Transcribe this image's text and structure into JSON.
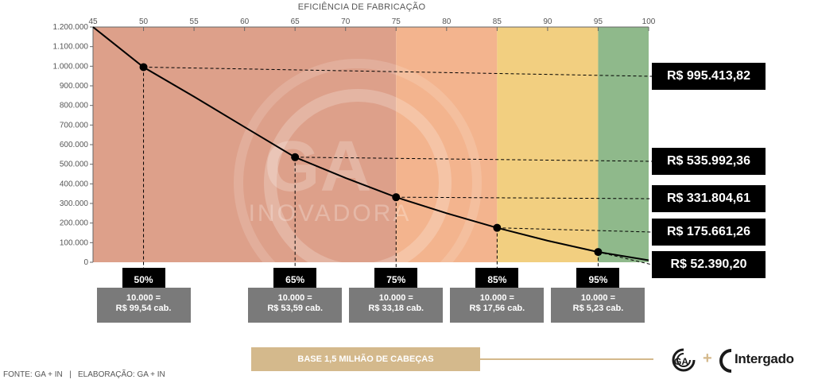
{
  "chart_data": {
    "type": "line",
    "title": "EFICIÊNCIA DE FABRICAÇÃO",
    "x_ticks": [
      "45",
      "50",
      "55",
      "60",
      "65",
      "70",
      "75",
      "80",
      "85",
      "90",
      "95",
      "100"
    ],
    "y_ticks": [
      "0",
      "100.000",
      "200.000",
      "300.000",
      "400.000",
      "500.000",
      "600.000",
      "700.000",
      "800.000",
      "900.000",
      "1.000.000",
      "1.100.000",
      "1.200.000"
    ],
    "xlim": [
      45,
      100
    ],
    "ylim": [
      0,
      1200000
    ],
    "zones": [
      {
        "from": 45,
        "to": 75,
        "color": "#dda08a"
      },
      {
        "from": 75,
        "to": 85,
        "color": "#f3b48e"
      },
      {
        "from": 85,
        "to": 95,
        "color": "#f2cf80"
      },
      {
        "from": 95,
        "to": 100,
        "color": "#8fb98b"
      }
    ],
    "curve": {
      "x": [
        45,
        50,
        55,
        60,
        65,
        70,
        75,
        80,
        85,
        90,
        95,
        100
      ],
      "y": [
        1240000,
        995413.82,
        845000,
        690000,
        535992.36,
        430000,
        331804.61,
        250000,
        175661.26,
        110000,
        52390.2,
        10000
      ]
    },
    "points": [
      {
        "x": 50,
        "y": 995413.82,
        "label": "R$ 995.413,82"
      },
      {
        "x": 65,
        "y": 535992.36,
        "label": "R$ 535.992,36"
      },
      {
        "x": 75,
        "y": 331804.61,
        "label": "R$ 331.804,61"
      },
      {
        "x": 85,
        "y": 175661.26,
        "label": "R$ 175.661,26"
      },
      {
        "x": 95,
        "y": 52390.2,
        "label": "R$ 52.390,20"
      }
    ],
    "grid": false,
    "watermark": {
      "line1": "GA",
      "line2": "INOVADORA"
    }
  },
  "pct_labels": [
    "50%",
    "65%",
    "75%",
    "85%",
    "95%"
  ],
  "cost_labels": [
    {
      "line1": "10.000 =",
      "line2": "R$ 99,54 cab."
    },
    {
      "line1": "10.000 =",
      "line2": "R$ 53,59 cab."
    },
    {
      "line1": "10.000 =",
      "line2": "R$ 33,18 cab."
    },
    {
      "line1": "10.000 =",
      "line2": "R$ 17,56 cab."
    },
    {
      "line1": "10.000 =",
      "line2": "R$ 5,23 cab."
    }
  ],
  "base_label": "BASE 1,5 MILHÃO DE CABEÇAS",
  "footer": "FONTE: GA + IN   |   ELABORAÇÃO: GA + IN",
  "logos": {
    "ga": "GA",
    "plus": "+",
    "intergado": "Intergado"
  },
  "colors": {
    "curve": "#000000",
    "value_box": "#000000",
    "cost_box": "#7a7a7a",
    "base_bar": "#d4b98c"
  }
}
